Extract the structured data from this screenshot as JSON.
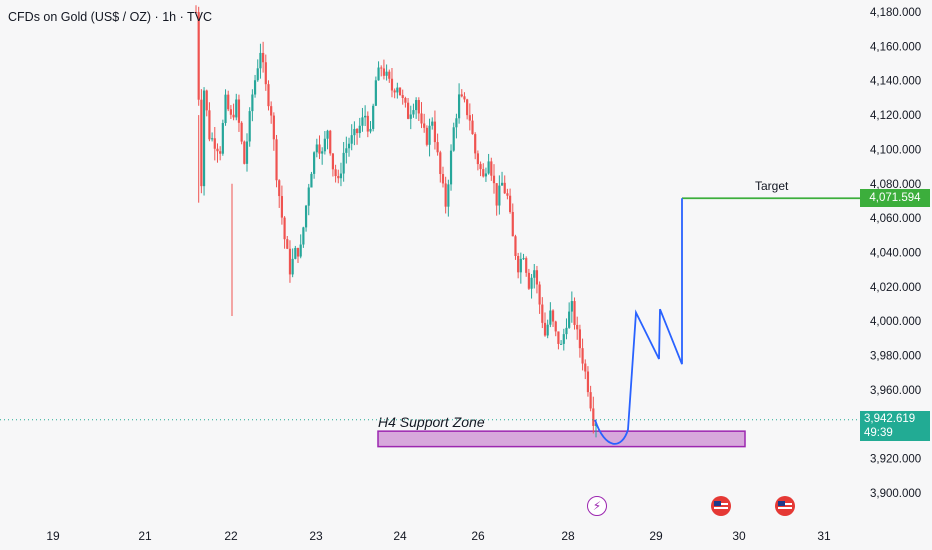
{
  "header": {
    "title": "CFDs on Gold (US$ / OZ) · 1h · TVC"
  },
  "price_axis": {
    "ticks": [
      "4,180.000",
      "4,160.000",
      "4,140.000",
      "4,120.000",
      "4,100.000",
      "4,080.000",
      "4,060.000",
      "4,040.000",
      "4,020.000",
      "4,000.000",
      "3,980.000",
      "3,960.000",
      "3,920.000",
      "3,900.000"
    ]
  },
  "time_axis": {
    "ticks": [
      "19",
      "21",
      "22",
      "23",
      "24",
      "26",
      "28",
      "29",
      "30",
      "31"
    ]
  },
  "annotations": {
    "support_zone_label": "H4 Support Zone",
    "target_label": "Target",
    "target_price": "4,071.594",
    "current_price": "3,942.619",
    "countdown": "49:39"
  },
  "colors": {
    "up": "#26a69a",
    "down": "#ef5350",
    "target_line": "#3cae3c",
    "zone_fill": "#d7a8dc",
    "zone_border": "#9c27b0",
    "projection": "#2962ff",
    "current_price": "#22ab94"
  },
  "events": [
    {
      "icon": "lightning-icon"
    },
    {
      "icon": "us-flag-icon"
    },
    {
      "icon": "us-flag-icon"
    }
  ],
  "chart_data": {
    "type": "candlestick",
    "y_range": [
      3895,
      4185
    ],
    "x_ticks": [
      "19",
      "21",
      "22",
      "23",
      "24",
      "26",
      "28",
      "29",
      "30",
      "31"
    ],
    "target_price": 4071.594,
    "current_price": 3942.619,
    "support_zone": [
      3927,
      3936
    ],
    "waypoints": [
      [
        0,
        4180
      ],
      [
        2,
        4082
      ],
      [
        3,
        4135
      ],
      [
        5,
        4108
      ],
      [
        9,
        4100
      ],
      [
        11,
        4128
      ],
      [
        13,
        4118
      ],
      [
        15,
        4126
      ],
      [
        18,
        4092
      ],
      [
        21,
        4132
      ],
      [
        24,
        4158
      ],
      [
        26,
        4136
      ],
      [
        28,
        4122
      ],
      [
        30,
        4086
      ],
      [
        33,
        4048
      ],
      [
        35,
        4030
      ],
      [
        37,
        4040
      ],
      [
        39,
        4042
      ],
      [
        42,
        4080
      ],
      [
        45,
        4106
      ],
      [
        47,
        4097
      ],
      [
        49,
        4112
      ],
      [
        51,
        4090
      ],
      [
        53,
        4080
      ],
      [
        55,
        4098
      ],
      [
        57,
        4104
      ],
      [
        60,
        4110
      ],
      [
        63,
        4120
      ],
      [
        65,
        4108
      ],
      [
        67,
        4140
      ],
      [
        69,
        4148
      ],
      [
        71,
        4142
      ],
      [
        73,
        4135
      ],
      [
        75,
        4138
      ],
      [
        77,
        4128
      ],
      [
        79,
        4120
      ],
      [
        82,
        4130
      ],
      [
        84,
        4112
      ],
      [
        86,
        4106
      ],
      [
        88,
        4118
      ],
      [
        91,
        4085
      ],
      [
        93,
        4068
      ],
      [
        96,
        4112
      ],
      [
        98,
        4130
      ],
      [
        100,
        4126
      ],
      [
        102,
        4118
      ],
      [
        104,
        4098
      ],
      [
        107,
        4083
      ],
      [
        109,
        4097
      ],
      [
        112,
        4070
      ],
      [
        114,
        4080
      ],
      [
        116,
        4072
      ],
      [
        118,
        4048
      ],
      [
        120,
        4032
      ],
      [
        122,
        4040
      ],
      [
        124,
        4022
      ],
      [
        126,
        4030
      ],
      [
        128,
        4010
      ],
      [
        130,
        3992
      ],
      [
        132,
        4004
      ],
      [
        134,
        3992
      ],
      [
        136,
        3985
      ],
      [
        138,
        4000
      ],
      [
        140,
        4008
      ],
      [
        142,
        3992
      ],
      [
        144,
        3978
      ],
      [
        146,
        3962
      ],
      [
        148,
        3943
      ],
      [
        149,
        3942.6
      ]
    ],
    "projection_path": [
      [
        3942.6
      ],
      [
        3930
      ],
      [
        3937
      ],
      [
        4005
      ],
      [
        3978
      ],
      [
        4007
      ],
      [
        3975
      ],
      [
        4071.6
      ]
    ]
  }
}
